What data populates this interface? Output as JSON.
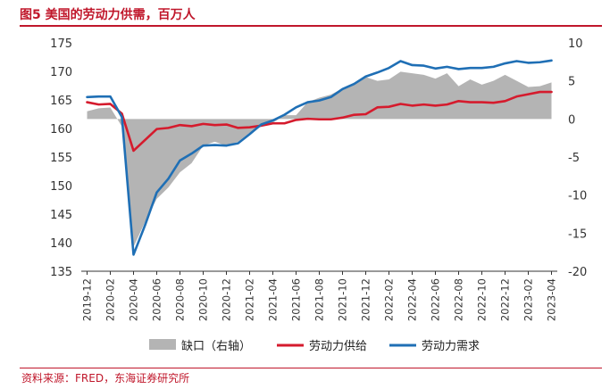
{
  "header": {
    "title": "图5  美国的劳动力供需，百万人"
  },
  "footer": {
    "source": "资料来源：FRED，东海证券研究所"
  },
  "colors": {
    "title": "#c0172b",
    "gap": "#b4b4b4",
    "supply": "#d51b2d",
    "demand": "#1f6fb5",
    "axis": "#555555"
  },
  "chart_data": {
    "type": "line",
    "categories": [
      "2019-12",
      "2020-01",
      "2020-02",
      "2020-03",
      "2020-04",
      "2020-05",
      "2020-06",
      "2020-07",
      "2020-08",
      "2020-09",
      "2020-10",
      "2020-11",
      "2020-12",
      "2021-01",
      "2021-02",
      "2021-03",
      "2021-04",
      "2021-05",
      "2021-06",
      "2021-07",
      "2021-08",
      "2021-09",
      "2021-10",
      "2021-11",
      "2021-12",
      "2022-01",
      "2022-02",
      "2022-03",
      "2022-04",
      "2022-05",
      "2022-06",
      "2022-07",
      "2022-08",
      "2022-09",
      "2022-10",
      "2022-11",
      "2022-12",
      "2023-01",
      "2023-02",
      "2023-03",
      "2023-04"
    ],
    "tick_labels": [
      "2019-12",
      "2020-02",
      "2020-04",
      "2020-06",
      "2020-08",
      "2020-10",
      "2020-12",
      "2021-02",
      "2021-04",
      "2021-06",
      "2021-08",
      "2021-10",
      "2021-12",
      "2022-02",
      "2022-04",
      "2022-06",
      "2022-08",
      "2022-10",
      "2022-12",
      "2023-02",
      "2023-04"
    ],
    "y_left": {
      "min": 135,
      "max": 175,
      "ticks": [
        135,
        140,
        145,
        150,
        155,
        160,
        165,
        170,
        175
      ]
    },
    "y_right": {
      "min": -20,
      "max": 10,
      "ticks": [
        -20,
        -15,
        -10,
        -5,
        0,
        5,
        10
      ]
    },
    "legend_position": "bottom",
    "series": [
      {
        "name": "缺口（右轴）",
        "kind": "area",
        "axis": "right",
        "values": [
          1.0,
          1.4,
          1.5,
          -1.0,
          -16.8,
          -13.5,
          -10.5,
          -9.0,
          -7.0,
          -5.8,
          -3.5,
          -3.0,
          -3.5,
          -3.0,
          -1.8,
          -1.0,
          -0.5,
          0.5,
          0.5,
          2.2,
          2.8,
          3.2,
          4.0,
          4.5,
          5.5,
          5.0,
          5.2,
          6.2,
          6.0,
          5.8,
          5.3,
          6.0,
          4.3,
          5.2,
          4.5,
          5.0,
          5.8,
          5.0,
          4.2,
          4.3,
          4.8
        ]
      },
      {
        "name": "劳动力供给",
        "kind": "line",
        "axis": "left",
        "values": [
          164.6,
          164.2,
          164.3,
          162.6,
          156.1,
          158.0,
          159.9,
          160.1,
          160.6,
          160.4,
          160.8,
          160.6,
          160.7,
          160.1,
          160.2,
          160.5,
          160.9,
          160.9,
          161.5,
          161.7,
          161.6,
          161.6,
          161.9,
          162.4,
          162.5,
          163.7,
          163.8,
          164.3,
          164.0,
          164.2,
          164.0,
          164.2,
          164.8,
          164.6,
          164.6,
          164.5,
          164.8,
          165.6,
          166.0,
          166.4,
          166.4
        ]
      },
      {
        "name": "劳动力需求",
        "kind": "line",
        "axis": "left",
        "values": [
          165.5,
          165.6,
          165.6,
          162.0,
          137.9,
          143.1,
          148.8,
          151.2,
          154.4,
          155.6,
          157.0,
          157.1,
          157.0,
          157.4,
          159.0,
          160.7,
          161.4,
          162.4,
          163.7,
          164.6,
          164.9,
          165.5,
          166.9,
          167.8,
          169.1,
          169.8,
          170.6,
          171.8,
          171.1,
          171.0,
          170.5,
          170.8,
          170.4,
          170.6,
          170.6,
          170.8,
          171.4,
          171.8,
          171.5,
          171.6,
          171.9
        ]
      }
    ]
  }
}
